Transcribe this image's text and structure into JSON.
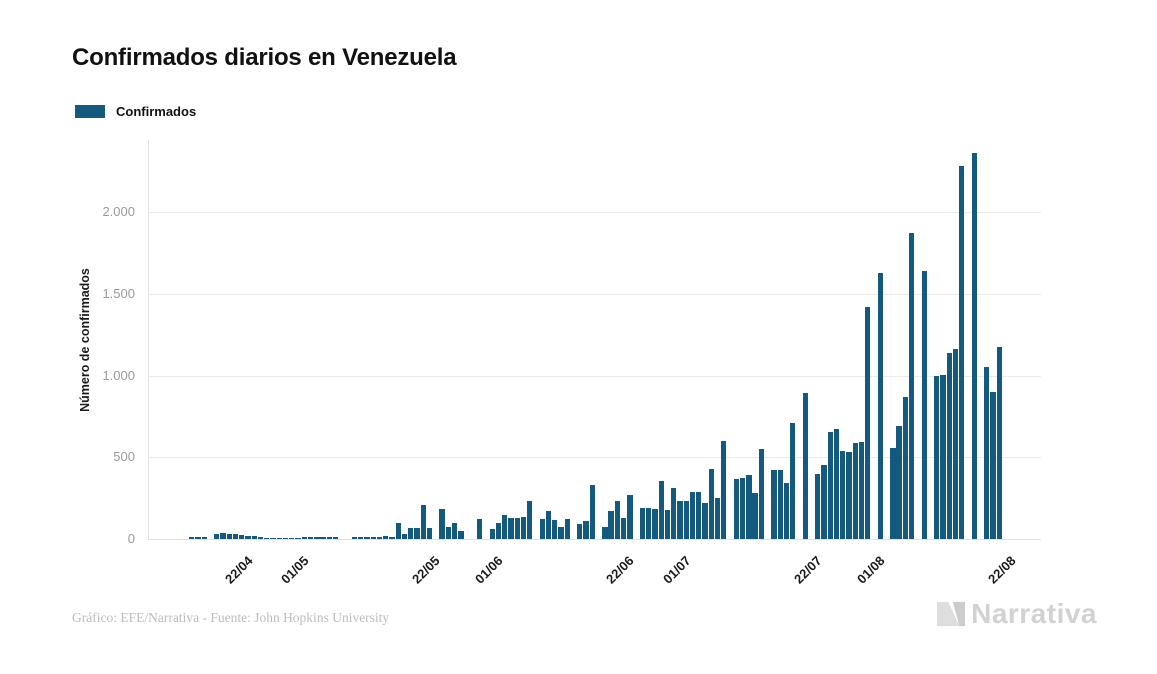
{
  "title": "Confirmados diarios en Venezuela",
  "legend": {
    "label": "Confirmados",
    "color": "#135a7e"
  },
  "footer": {
    "credit": "Gráfico: EFE/Narrativa - Fuente: John Hopkins University"
  },
  "logo": {
    "text": "Narrativa"
  },
  "chart_data": {
    "type": "bar",
    "title": "Confirmados diarios en Venezuela",
    "xlabel": "",
    "ylabel": "Número de confirmados",
    "ylim": [
      0,
      2400
    ],
    "yticks": [
      0,
      500,
      1000,
      1500,
      2000
    ],
    "ytick_labels": [
      "0",
      "500",
      "1.000",
      "1.500",
      "2.000"
    ],
    "xtick_labels": [
      "22/04",
      "01/05",
      "22/05",
      "01/06",
      "22/06",
      "01/07",
      "22/07",
      "01/08",
      "22/08"
    ],
    "grid": true,
    "legend_entries": [
      "Confirmados"
    ],
    "legend_position": "top-left",
    "bar_color": "#135a7e",
    "categories": [
      "15/04",
      "16/04",
      "17/04",
      "18/04",
      "19/04",
      "20/04",
      "21/04",
      "22/04",
      "23/04",
      "24/04",
      "25/04",
      "26/04",
      "27/04",
      "28/04",
      "29/04",
      "30/04",
      "01/05",
      "02/05",
      "03/05",
      "04/05",
      "05/05",
      "06/05",
      "07/05",
      "08/05",
      "09/05",
      "10/05",
      "11/05",
      "12/05",
      "13/05",
      "14/05",
      "15/05",
      "16/05",
      "17/05",
      "18/05",
      "19/05",
      "20/05",
      "21/05",
      "22/05",
      "23/05",
      "24/05",
      "25/05",
      "26/05",
      "27/05",
      "28/05",
      "29/05",
      "30/05",
      "31/05",
      "01/06",
      "02/06",
      "03/06",
      "04/06",
      "05/06",
      "06/06",
      "07/06",
      "08/06",
      "09/06",
      "10/06",
      "11/06",
      "12/06",
      "13/06",
      "14/06",
      "15/06",
      "16/06",
      "17/06",
      "18/06",
      "19/06",
      "20/06",
      "21/06",
      "22/06",
      "23/06",
      "24/06",
      "25/06",
      "26/06",
      "27/06",
      "28/06",
      "29/06",
      "30/06",
      "01/07",
      "02/07",
      "03/07",
      "04/07",
      "05/07",
      "06/07",
      "07/07",
      "08/07",
      "09/07",
      "10/07",
      "11/07",
      "12/07",
      "13/07",
      "14/07",
      "15/07",
      "16/07",
      "17/07",
      "18/07",
      "19/07",
      "20/07",
      "21/07",
      "22/07",
      "23/07",
      "24/07",
      "25/07",
      "26/07",
      "27/07",
      "28/07",
      "29/07",
      "30/07",
      "31/07",
      "01/08",
      "02/08",
      "03/08",
      "04/08",
      "05/08",
      "06/08",
      "07/08",
      "08/08",
      "09/08",
      "10/08",
      "11/08",
      "12/08",
      "13/08",
      "14/08",
      "15/08",
      "16/08",
      "17/08",
      "18/08",
      "19/08",
      "20/08",
      "21/08",
      "22/08"
    ],
    "values": [
      10,
      10,
      12,
      0,
      30,
      35,
      33,
      28,
      27,
      18,
      18,
      15,
      6,
      6,
      6,
      8,
      8,
      5,
      10,
      10,
      10,
      12,
      12,
      12,
      0,
      0,
      10,
      10,
      10,
      10,
      15,
      20,
      15,
      95,
      30,
      70,
      70,
      210,
      70,
      0,
      185,
      75,
      100,
      50,
      0,
      0,
      120,
      0,
      60,
      100,
      145,
      130,
      130,
      135,
      235,
      0,
      120,
      170,
      115,
      75,
      120,
      0,
      90,
      110,
      330,
      0,
      75,
      170,
      230,
      130,
      270,
      0,
      190,
      190,
      185,
      355,
      175,
      310,
      230,
      230,
      285,
      285,
      220,
      430,
      250,
      600,
      0,
      370,
      375,
      390,
      280,
      550,
      0,
      425,
      425,
      345,
      710,
      0,
      890,
      0,
      395,
      450,
      655,
      670,
      540,
      530,
      585,
      595,
      1420,
      0,
      1630,
      0,
      555,
      690,
      870,
      1870,
      0,
      1640,
      0,
      995,
      1005,
      1140,
      1165,
      2280,
      0,
      2360,
      0,
      1050,
      900,
      1175
    ]
  }
}
